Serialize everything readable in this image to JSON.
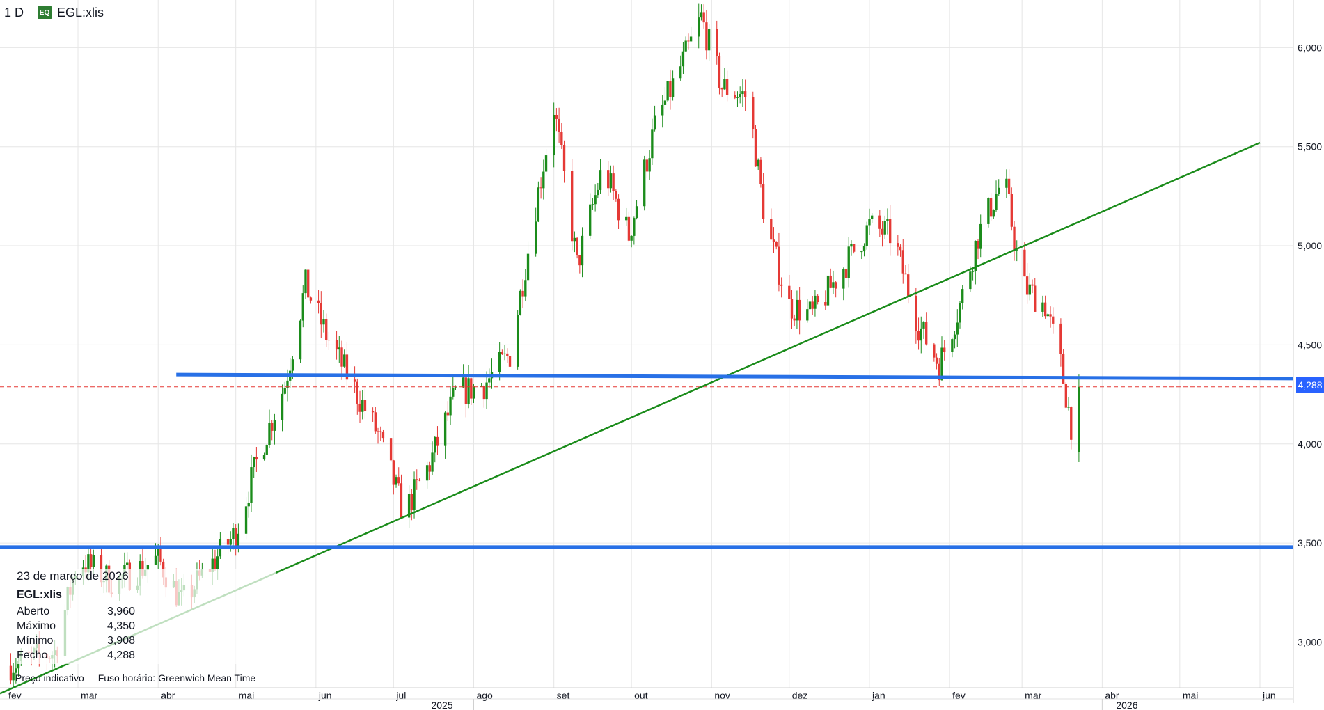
{
  "header": {
    "interval": "1 D",
    "badge": "EQ",
    "symbol": "EGL:xlis"
  },
  "info_box": {
    "date": "23 de março de 2026",
    "symbol": "EGL:xlis",
    "rows": [
      {
        "label": "Aberto",
        "value": "3,960"
      },
      {
        "label": "Máximo",
        "value": "4,350"
      },
      {
        "label": "Mínimo",
        "value": "3,908"
      },
      {
        "label": "Fecho",
        "value": "4,288"
      }
    ],
    "note_price": "Preço indicativo",
    "note_timezone": "Fuso horário: Greenwich Mean Time"
  },
  "last_price_label": "4,288",
  "colors": {
    "up": "#1b8c1b",
    "down": "#e53935",
    "trendline": "#1b8c1b",
    "horizontal_line": "#2870e6",
    "last_price_line": "#e53935",
    "grid": "#e6e6e6"
  },
  "chart_data": {
    "type": "candlestick",
    "series_name": "EGL:xlis",
    "y_ticks": [
      "3,000",
      "3,500",
      "4,000",
      "4,500",
      "5,000",
      "5,500",
      "6,000"
    ],
    "y_tick_values": [
      3.0,
      3.5,
      4.0,
      4.5,
      5.0,
      5.5,
      6.0
    ],
    "ylim": [
      2.77,
      6.24
    ],
    "x_month_labels": [
      "fev",
      "mar",
      "abr",
      "mai",
      "jun",
      "jul",
      "ago",
      "set",
      "out",
      "nov",
      "dez",
      "jan",
      "fev",
      "mar",
      "abr",
      "mai",
      "jun"
    ],
    "x_year_labels": [
      "2025",
      "2026"
    ],
    "last_price": 4.288,
    "last_candle": {
      "date": "2026-03-23",
      "open": 3.96,
      "high": 4.35,
      "low": 3.908,
      "close": 4.288
    },
    "price_path": [
      [
        "2025-02-01",
        2.88
      ],
      [
        "2025-02-20",
        2.95
      ],
      [
        "2025-03-01",
        3.42
      ],
      [
        "2025-03-15",
        3.3
      ],
      [
        "2025-04-01",
        3.42
      ],
      [
        "2025-04-10",
        3.2
      ],
      [
        "2025-04-25",
        3.45
      ],
      [
        "2025-05-01",
        3.55
      ],
      [
        "2025-05-10",
        3.95
      ],
      [
        "2025-05-20",
        4.3
      ],
      [
        "2025-05-28",
        4.8
      ],
      [
        "2025-06-05",
        4.55
      ],
      [
        "2025-06-15",
        4.3
      ],
      [
        "2025-06-25",
        4.05
      ],
      [
        "2025-07-05",
        3.65
      ],
      [
        "2025-07-15",
        3.9
      ],
      [
        "2025-07-25",
        4.25
      ],
      [
        "2025-08-05",
        4.3
      ],
      [
        "2025-08-15",
        4.45
      ],
      [
        "2025-08-25",
        5.2
      ],
      [
        "2025-09-01",
        5.7
      ],
      [
        "2025-09-10",
        4.9
      ],
      [
        "2025-09-20",
        5.4
      ],
      [
        "2025-09-30",
        5.05
      ],
      [
        "2025-10-10",
        5.6
      ],
      [
        "2025-10-20",
        5.9
      ],
      [
        "2025-10-28",
        6.15
      ],
      [
        "2025-11-05",
        5.8
      ],
      [
        "2025-11-15",
        5.75
      ],
      [
        "2025-11-22",
        5.1
      ],
      [
        "2025-12-01",
        4.7
      ],
      [
        "2025-12-10",
        4.65
      ],
      [
        "2025-12-20",
        4.85
      ],
      [
        "2026-01-01",
        5.1
      ],
      [
        "2026-01-10",
        5.05
      ],
      [
        "2026-01-20",
        4.6
      ],
      [
        "2026-01-28",
        4.4
      ],
      [
        "2026-02-05",
        4.7
      ],
      [
        "2026-02-12",
        5.05
      ],
      [
        "2026-02-22",
        5.35
      ],
      [
        "2026-03-01",
        4.8
      ],
      [
        "2026-03-10",
        4.7
      ],
      [
        "2026-03-16",
        4.4
      ],
      [
        "2026-03-20",
        4.1
      ],
      [
        "2026-03-23",
        4.288
      ]
    ],
    "trendline": {
      "from": [
        "2025-04-08",
        3.13
      ],
      "to": [
        "2026-06-01",
        5.52
      ]
    },
    "horizontal_lines": [
      {
        "from": [
          "2025-04-08",
          4.35
        ],
        "to": [
          "2026-06-03",
          4.33
        ]
      },
      {
        "from": [
          "2025-02-01",
          3.48
        ],
        "to": [
          "2026-06-03",
          3.48
        ]
      }
    ]
  }
}
